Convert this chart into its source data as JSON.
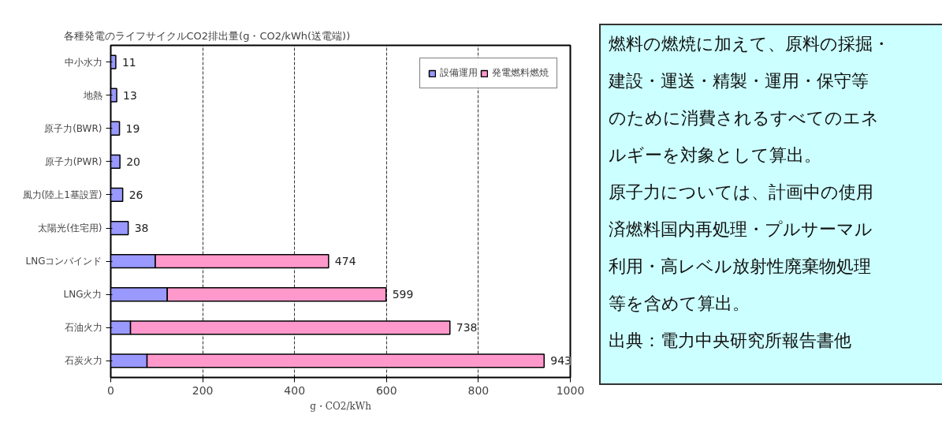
{
  "chart_data": {
    "type": "bar",
    "orientation": "horizontal",
    "stacked": true,
    "title": "各種発電のライフサイクルCO2排出量(g・CO2/kWh(送電端))",
    "xlabel": "g・CO2/kWh",
    "categories": [
      "中小水力",
      "地熱",
      "原子力(BWR)",
      "原子力(PWR)",
      "風力(陸上1基設置)",
      "太陽光(住宅用)",
      "LNGコンバインド",
      "LNG火力",
      "石油火力",
      "石炭火力"
    ],
    "series": [
      {
        "name": "設備運用",
        "color": "#9999ff",
        "values": [
          11,
          13,
          19,
          20,
          26,
          38,
          97,
          123,
          43,
          79
        ]
      },
      {
        "name": "発電燃料燃焼",
        "color": "#ff99cc",
        "values": [
          null,
          null,
          null,
          null,
          null,
          null,
          377,
          476,
          695,
          864
        ]
      }
    ],
    "totals": [
      "11",
      "13",
      "19",
      "20",
      "26",
      "38",
      "474",
      "599",
      "738",
      "943"
    ],
    "xlim": [
      0,
      1000
    ],
    "xticks": [
      0,
      200,
      400,
      600,
      800,
      1000
    ],
    "grid": "x",
    "legend": "top right",
    "annotations": [
      "燃料の燃焼に加えて、原料の採掘・",
      "建設・運送・精製・運用・保守等",
      "のために消費されるすべてのエネ",
      "ルギーを対象として算出。",
      "原子力については、計画中の使用",
      "済燃料国内再処理・プルサーマル",
      "利用・高レベル放射性廃棄物処理",
      "等を含めて算出。",
      "出典：電力中央研究所報告書他"
    ]
  }
}
